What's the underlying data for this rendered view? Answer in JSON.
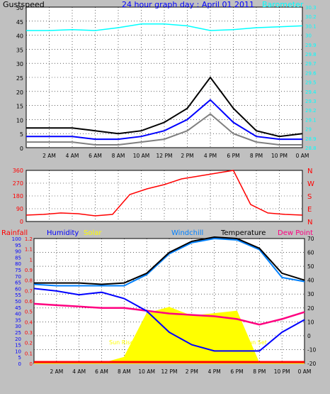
{
  "chart_data": [
    {
      "type": "line",
      "title": "24 hour graph day : April 01 2011",
      "ylabel": "Gustspeed",
      "y2label": "Barometer",
      "ylim": [
        0,
        50
      ],
      "y2lim": [
        28.8,
        30.3
      ],
      "grid": true,
      "x": [
        "0 AM",
        "2 AM",
        "4 AM",
        "6 AM",
        "8 AM",
        "10 AM",
        "12 PM",
        "2 PM",
        "4 PM",
        "6 PM",
        "8 PM",
        "10 PM",
        "12 AM"
      ],
      "yticks": [
        "0",
        "5",
        "10",
        "15",
        "20",
        "25",
        "30",
        "35",
        "40",
        "45",
        "50"
      ],
      "y2ticks": [
        "28.8",
        "28.9",
        "29",
        "29.1",
        "29.2",
        "29.3",
        "29.4",
        "29.5",
        "29.6",
        "29.7",
        "29.8",
        "29.9",
        "30",
        "30.1",
        "30.2",
        "30.3"
      ],
      "xtick_labels": [
        "2 AM",
        "4 AM",
        "6 AM",
        "8 AM",
        "10 AM",
        "12 PM",
        "2 PM",
        "4 PM",
        "6 PM",
        "8 PM",
        "10 PM",
        "0 AM"
      ],
      "series": [
        {
          "color": "#00ffff",
          "values": [
            30.05,
            30.05,
            30.06,
            30.05,
            30.08,
            30.12,
            30.12,
            30.1,
            30.05,
            30.06,
            30.08,
            30.09,
            30.1
          ]
        },
        {
          "color": "#000000",
          "values": [
            7,
            7,
            7,
            6,
            5,
            6,
            9,
            14,
            25,
            14,
            6,
            4,
            5
          ]
        },
        {
          "color": "#0000ff",
          "values": [
            4,
            4,
            4,
            3,
            3,
            4,
            6,
            10,
            17,
            9,
            4,
            3,
            3
          ]
        },
        {
          "color": "#808080",
          "values": [
            2,
            2,
            2,
            1,
            1,
            2,
            3,
            6,
            12,
            5,
            2,
            1,
            1
          ]
        }
      ]
    },
    {
      "type": "scatter",
      "ylim": [
        0,
        360
      ],
      "yticks": [
        "0",
        "90",
        "180",
        "270",
        "360"
      ],
      "y2ticks": [
        "N",
        "W",
        "S",
        "E",
        "N"
      ],
      "grid": true,
      "series": [
        {
          "color": "#ff0000",
          "values": [
            45,
            50,
            60,
            55,
            40,
            50,
            190,
            230,
            260,
            300,
            320,
            340,
            360,
            120,
            60,
            50,
            45
          ]
        }
      ]
    },
    {
      "type": "line",
      "grid": true,
      "legend": [
        "Rainfall",
        "Humidity",
        "Solar",
        "Windchill",
        "Temperature",
        "Dew Point"
      ],
      "legend_colors": [
        "#ff0000",
        "#0000ff",
        "#ffff00",
        "#0080ff",
        "#000000",
        "#ff0080"
      ],
      "y_left_rain_ticks": [
        "0",
        "0.1",
        "0.2",
        "0.3",
        "0.4",
        "0.5",
        "0.6",
        "0.7",
        "0.8",
        "0.9",
        "1",
        "1.1",
        "1.2"
      ],
      "y_left_hum_ticks": [
        "0",
        "5",
        "10",
        "15",
        "20",
        "25",
        "30",
        "35",
        "40",
        "45",
        "50",
        "55",
        "60",
        "65",
        "70",
        "75",
        "80",
        "85",
        "90",
        "95",
        "100"
      ],
      "y_right_ticks": [
        "-20",
        "-10",
        "0",
        "10",
        "20",
        "30",
        "40",
        "50",
        "60",
        "70"
      ],
      "xtick_labels": [
        "2 AM",
        "4 AM",
        "6 AM",
        "8 AM",
        "10 AM",
        "12 PM",
        "2 PM",
        "4 PM",
        "6 PM",
        "8 PM",
        "10 PM",
        "0 AM"
      ],
      "annotations": [
        "Sun Rise",
        "Sun Set"
      ],
      "series": [
        {
          "name": "Temperature",
          "color": "#000000",
          "values": [
            38,
            38,
            38,
            37,
            38,
            45,
            60,
            68,
            71,
            70,
            63,
            45,
            40
          ]
        },
        {
          "name": "Windchill",
          "color": "#0080ff",
          "values": [
            37,
            36,
            36,
            36,
            36,
            44,
            59,
            67,
            70,
            69,
            62,
            42,
            39
          ]
        },
        {
          "name": "Dew Point",
          "color": "#ff0080",
          "values": [
            23,
            22,
            21,
            20,
            20,
            18,
            16,
            15,
            14,
            12,
            8,
            12,
            17
          ]
        },
        {
          "name": "Humidity",
          "color": "#0000ff",
          "values": [
            60,
            58,
            55,
            57,
            52,
            42,
            25,
            15,
            10,
            10,
            10,
            25,
            35
          ]
        },
        {
          "name": "Solar",
          "color": "#ffff00",
          "values": [
            0,
            0,
            0,
            0,
            5,
            40,
            45,
            38,
            40,
            42,
            0,
            0,
            0
          ]
        },
        {
          "name": "Rainfall",
          "color": "#ff0000",
          "values": [
            0,
            0,
            0,
            0,
            0,
            0,
            0,
            0,
            0,
            0,
            0,
            0,
            0
          ]
        }
      ]
    }
  ]
}
